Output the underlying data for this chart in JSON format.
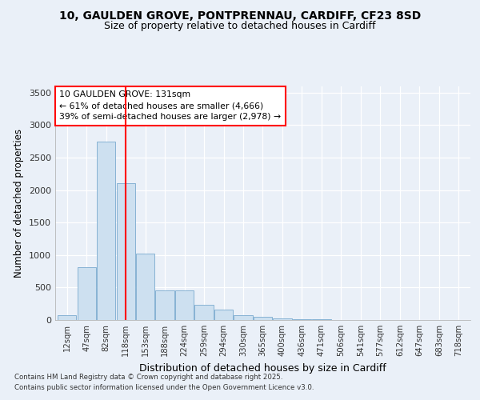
{
  "title_line1": "10, GAULDEN GROVE, PONTPRENNAU, CARDIFF, CF23 8SD",
  "title_line2": "Size of property relative to detached houses in Cardiff",
  "xlabel": "Distribution of detached houses by size in Cardiff",
  "ylabel": "Number of detached properties",
  "categories": [
    "12sqm",
    "47sqm",
    "82sqm",
    "118sqm",
    "153sqm",
    "188sqm",
    "224sqm",
    "259sqm",
    "294sqm",
    "330sqm",
    "365sqm",
    "400sqm",
    "436sqm",
    "471sqm",
    "506sqm",
    "541sqm",
    "577sqm",
    "612sqm",
    "647sqm",
    "683sqm",
    "718sqm"
  ],
  "values": [
    75,
    810,
    2750,
    2100,
    1020,
    460,
    460,
    230,
    160,
    80,
    55,
    30,
    18,
    10,
    5,
    3,
    2,
    2,
    1,
    1,
    1
  ],
  "bar_color": "#cde0f0",
  "bar_edge_color": "#7aaacf",
  "vline_x": 3,
  "vline_color": "red",
  "annotation_text": "10 GAULDEN GROVE: 131sqm\n← 61% of detached houses are smaller (4,666)\n39% of semi-detached houses are larger (2,978) →",
  "annotation_box_color": "white",
  "annotation_box_edgecolor": "red",
  "ylim": [
    0,
    3600
  ],
  "yticks": [
    0,
    500,
    1000,
    1500,
    2000,
    2500,
    3000,
    3500
  ],
  "footer_line1": "Contains HM Land Registry data © Crown copyright and database right 2025.",
  "footer_line2": "Contains public sector information licensed under the Open Government Licence v3.0.",
  "background_color": "#eaf0f8",
  "plot_bg_color": "#eaf0f8",
  "title_fontsize": 10,
  "subtitle_fontsize": 9
}
